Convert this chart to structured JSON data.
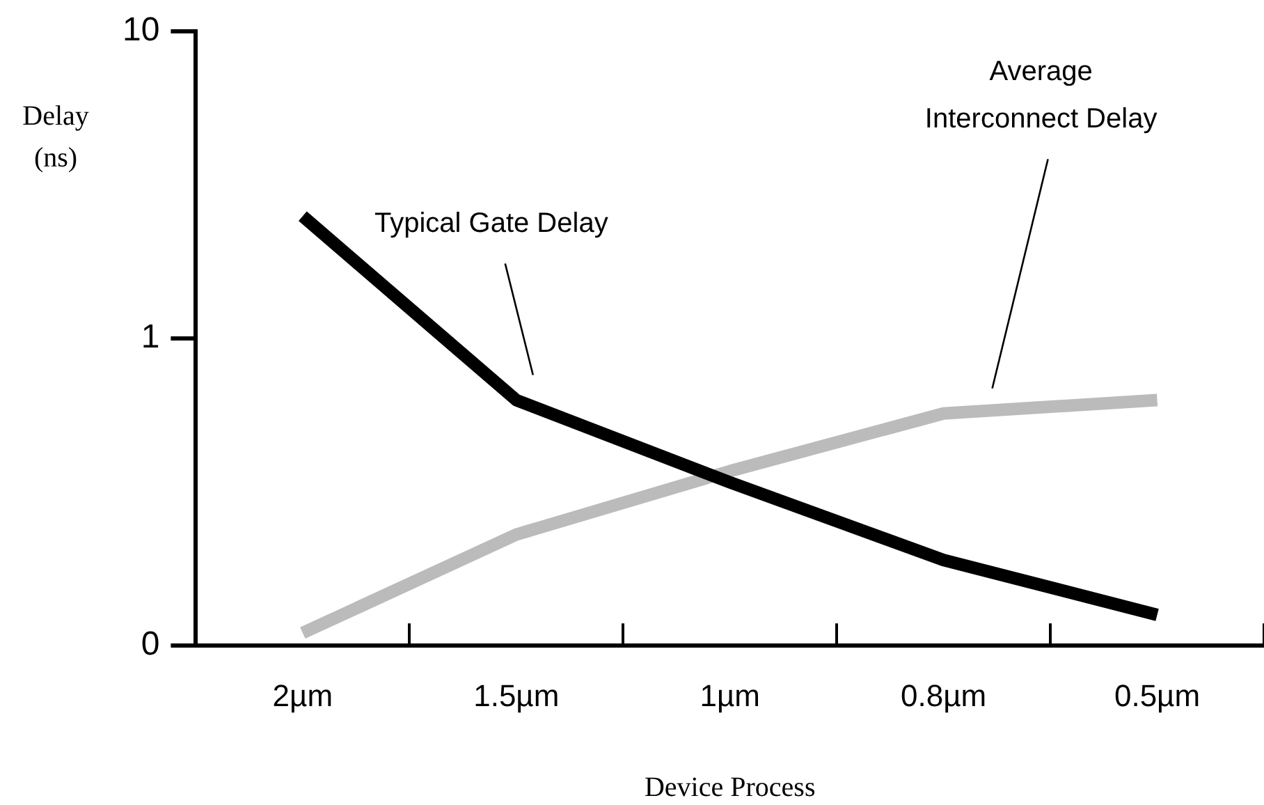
{
  "chart_data": {
    "type": "line",
    "xlabel": "Device Process",
    "ylabel": "Delay (ns)",
    "categories": [
      "2µm",
      "1.5µm",
      "1µm",
      "0.8µm",
      "0.5µm"
    ],
    "series": [
      {
        "name": "Typical Gate Delay",
        "color": "#000000",
        "values": [
          2.5,
          0.63,
          0.34,
          0.19,
          0.126
        ]
      },
      {
        "name": "Average Interconnect Delay",
        "color": "#bbbbbb",
        "values": [
          0.11,
          0.23,
          0.37,
          0.57,
          0.63
        ]
      }
    ],
    "log": "y",
    "ylim": [
      0.1,
      10
    ],
    "yticks": [
      {
        "value": 0.1,
        "label": "0"
      },
      1,
      10
    ],
    "grid": false,
    "legend": false,
    "marker": "none",
    "line_style": "solid"
  }
}
